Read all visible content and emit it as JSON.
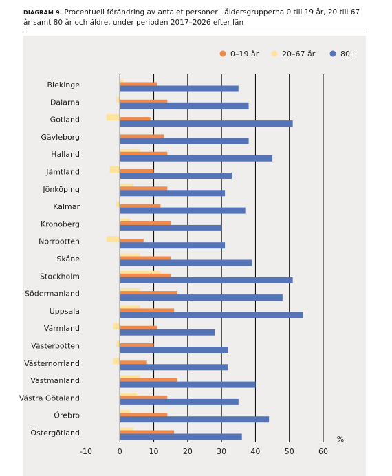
{
  "caption": {
    "label": "DIAGRAM 9.",
    "text": "Procentuell förändring av antalet personer i åldersgrupperna 0 till 19 år, 20 till 67 år samt 80 år och äldre, under perioden 2017–2026 efter län"
  },
  "chart_data": {
    "type": "bar",
    "orientation": "horizontal",
    "title": "",
    "xlabel": "%",
    "ylabel": "",
    "xlim": [
      -10,
      60
    ],
    "xticks": [
      -10,
      0,
      10,
      20,
      30,
      40,
      50,
      60
    ],
    "grid": true,
    "legend_position": "top-right",
    "categories": [
      "Blekinge",
      "Dalarna",
      "Gotland",
      "Gävleborg",
      "Halland",
      "Jämtland",
      "Jönköping",
      "Kalmar",
      "Kronoberg",
      "Norrbotten",
      "Skåne",
      "Stockholm",
      "Södermanland",
      "Uppsala",
      "Värmland",
      "Västerbotten",
      "Västernorrland",
      "Västmanland",
      "Västra Götaland",
      "Örebro",
      "Östergötland"
    ],
    "series": [
      {
        "name": "0–19 år",
        "color": "#ee8a4b",
        "values": [
          11,
          14,
          9,
          13,
          14,
          10,
          14,
          12,
          15,
          7,
          15,
          15,
          17,
          16,
          11,
          10,
          8,
          17,
          14,
          14,
          16
        ]
      },
      {
        "name": "20–67 år",
        "color": "#fde39b",
        "values": [
          1,
          -1,
          -4,
          0,
          6,
          -3,
          4,
          -1,
          3,
          -4,
          6,
          12,
          6,
          6,
          -2,
          -1,
          -2,
          6,
          5,
          3,
          4
        ]
      },
      {
        "name": "80+",
        "color": "#5574b8",
        "values": [
          35,
          38,
          51,
          38,
          45,
          33,
          31,
          37,
          30,
          31,
          39,
          51,
          48,
          54,
          28,
          32,
          32,
          40,
          35,
          44,
          36
        ]
      }
    ]
  }
}
